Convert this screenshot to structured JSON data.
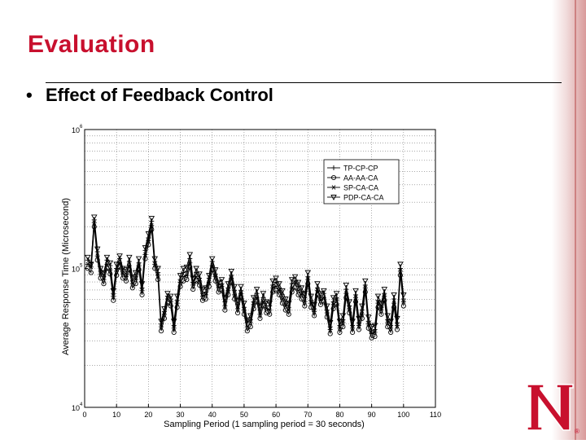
{
  "slide": {
    "title": "Evaluation",
    "bullet": "Effect of Feedback Control"
  },
  "logo": {
    "letter": "N",
    "mark": "®",
    "color": "#c8102e"
  },
  "colors": {
    "title": "#c8102e",
    "plot": "#000000"
  },
  "chart_data": {
    "type": "line",
    "xlabel": "Sampling Period (1 sampling period = 30 seconds)",
    "ylabel": "Average Response Time (Microsecond)",
    "xlim": [
      0,
      110
    ],
    "ylim_log10": [
      4,
      6
    ],
    "yscale": "log",
    "grid": true,
    "x_ticks": [
      0,
      10,
      20,
      30,
      40,
      50,
      60,
      70,
      80,
      90,
      100,
      110
    ],
    "y_ticks": [
      {
        "base": "10",
        "exp": "4",
        "value": 10000
      },
      {
        "base": "10",
        "exp": "5",
        "value": 100000
      },
      {
        "base": "10",
        "exp": "6",
        "value": 1000000
      }
    ],
    "legend_position": "top-right",
    "x": [
      1,
      2,
      3,
      4,
      5,
      6,
      7,
      8,
      9,
      10,
      11,
      12,
      13,
      14,
      15,
      16,
      17,
      18,
      19,
      20,
      21,
      22,
      23,
      24,
      25,
      26,
      27,
      28,
      29,
      30,
      31,
      32,
      33,
      34,
      35,
      36,
      37,
      38,
      39,
      40,
      41,
      42,
      43,
      44,
      45,
      46,
      47,
      48,
      49,
      50,
      51,
      52,
      53,
      54,
      55,
      56,
      57,
      58,
      59,
      60,
      61,
      62,
      63,
      64,
      65,
      66,
      67,
      68,
      69,
      70,
      71,
      72,
      73,
      74,
      75,
      76,
      77,
      78,
      79,
      80,
      81,
      82,
      83,
      84,
      85,
      86,
      87,
      88,
      89,
      90,
      91,
      92,
      93,
      94,
      95,
      96,
      97,
      98,
      99,
      100
    ],
    "series": [
      {
        "name": "TP-CP-CP",
        "marker": "plus",
        "log10": [
          5.06,
          5.04,
          5.35,
          5.12,
          4.98,
          4.94,
          5.06,
          5.02,
          4.82,
          5.0,
          5.07,
          4.98,
          4.96,
          5.05,
          4.91,
          4.94,
          5.04,
          4.86,
          5.13,
          5.22,
          5.34,
          5.05,
          4.97,
          4.6,
          4.69,
          4.8,
          4.78,
          4.59,
          4.77,
          4.92,
          4.97,
          4.98,
          5.07,
          4.9,
          4.97,
          4.93,
          4.82,
          4.83,
          4.93,
          5.05,
          4.96,
          4.88,
          4.89,
          4.76,
          4.86,
          4.95,
          4.84,
          4.74,
          4.84,
          4.72,
          4.61,
          4.63,
          4.76,
          4.82,
          4.7,
          4.79,
          4.73,
          4.73,
          4.88,
          4.9,
          4.86,
          4.81,
          4.75,
          4.72,
          4.89,
          4.91,
          4.87,
          4.83,
          4.79,
          4.94,
          4.77,
          4.71,
          4.86,
          4.79,
          4.82,
          4.7,
          4.58,
          4.76,
          4.79,
          4.59,
          4.63,
          4.85,
          4.73,
          4.59,
          4.81,
          4.61,
          4.7,
          4.88,
          4.62,
          4.55,
          4.56,
          4.77,
          4.72,
          4.82,
          4.63,
          4.59,
          4.78,
          4.61,
          5.0,
          4.78
        ]
      },
      {
        "name": "AA-AA-CA",
        "marker": "circle",
        "log10": [
          5.0,
          4.97,
          5.3,
          5.06,
          4.93,
          4.89,
          5.0,
          4.96,
          4.77,
          4.95,
          5.01,
          4.93,
          4.91,
          4.99,
          4.86,
          4.89,
          4.99,
          4.81,
          5.07,
          5.17,
          5.28,
          5.0,
          4.92,
          4.55,
          4.64,
          4.75,
          4.73,
          4.54,
          4.72,
          4.87,
          4.91,
          4.92,
          5.01,
          4.85,
          4.91,
          4.88,
          4.77,
          4.78,
          4.87,
          4.99,
          4.91,
          4.83,
          4.84,
          4.7,
          4.81,
          4.9,
          4.78,
          4.68,
          4.79,
          4.67,
          4.55,
          4.58,
          4.71,
          4.76,
          4.64,
          4.73,
          4.68,
          4.67,
          4.83,
          4.84,
          4.81,
          4.75,
          4.7,
          4.67,
          4.83,
          4.86,
          4.81,
          4.78,
          4.73,
          4.89,
          4.72,
          4.66,
          4.81,
          4.74,
          4.76,
          4.65,
          4.53,
          4.71,
          4.74,
          4.54,
          4.58,
          4.79,
          4.68,
          4.54,
          4.76,
          4.56,
          4.64,
          4.83,
          4.57,
          4.5,
          4.51,
          4.72,
          4.67,
          4.77,
          4.58,
          4.54,
          4.72,
          4.56,
          4.95,
          4.73
        ]
      },
      {
        "name": "SP-CA-CA",
        "marker": "star",
        "log10": [
          5.03,
          5.01,
          5.33,
          5.09,
          4.96,
          4.92,
          5.03,
          4.99,
          4.8,
          4.98,
          5.04,
          4.96,
          4.94,
          5.02,
          4.89,
          4.92,
          5.02,
          4.84,
          5.1,
          5.2,
          5.31,
          5.03,
          4.95,
          4.58,
          4.67,
          4.78,
          4.76,
          4.57,
          4.75,
          4.9,
          4.94,
          4.95,
          5.04,
          4.88,
          4.94,
          4.91,
          4.8,
          4.81,
          4.9,
          5.02,
          4.94,
          4.86,
          4.87,
          4.73,
          4.84,
          4.93,
          4.81,
          4.71,
          4.82,
          4.7,
          4.58,
          4.61,
          4.74,
          4.79,
          4.67,
          4.76,
          4.71,
          4.7,
          4.86,
          4.87,
          4.84,
          4.78,
          4.73,
          4.7,
          4.86,
          4.89,
          4.84,
          4.81,
          4.76,
          4.92,
          4.75,
          4.69,
          4.84,
          4.77,
          4.79,
          4.68,
          4.56,
          4.74,
          4.77,
          4.57,
          4.61,
          4.82,
          4.71,
          4.57,
          4.79,
          4.59,
          4.67,
          4.86,
          4.6,
          4.53,
          4.54,
          4.75,
          4.7,
          4.8,
          4.61,
          4.57,
          4.75,
          4.59,
          4.98,
          4.76
        ]
      },
      {
        "name": "PDP-CA-CA",
        "marker": "triangle-down",
        "log10": [
          5.08,
          5.03,
          5.37,
          5.14,
          5.0,
          4.97,
          5.08,
          5.04,
          4.84,
          5.03,
          5.09,
          5.0,
          4.99,
          5.08,
          4.94,
          4.97,
          5.07,
          4.89,
          5.15,
          5.25,
          5.36,
          5.07,
          5.0,
          4.62,
          4.71,
          4.82,
          4.8,
          4.62,
          4.8,
          4.95,
          5.0,
          5.01,
          5.1,
          4.93,
          5.0,
          4.96,
          4.85,
          4.86,
          4.95,
          5.07,
          4.99,
          4.9,
          4.92,
          4.79,
          4.89,
          4.98,
          4.87,
          4.77,
          4.87,
          4.75,
          4.63,
          4.66,
          4.79,
          4.85,
          4.73,
          4.82,
          4.76,
          4.75,
          4.91,
          4.93,
          4.89,
          4.84,
          4.78,
          4.75,
          4.92,
          4.94,
          4.9,
          4.86,
          4.82,
          4.97,
          4.8,
          4.74,
          4.89,
          4.82,
          4.84,
          4.73,
          4.61,
          4.79,
          4.82,
          4.62,
          4.66,
          4.88,
          4.76,
          4.62,
          4.84,
          4.64,
          4.73,
          4.91,
          4.65,
          4.58,
          4.59,
          4.8,
          4.75,
          4.85,
          4.66,
          4.62,
          4.81,
          4.64,
          5.03,
          4.81
        ]
      }
    ]
  }
}
